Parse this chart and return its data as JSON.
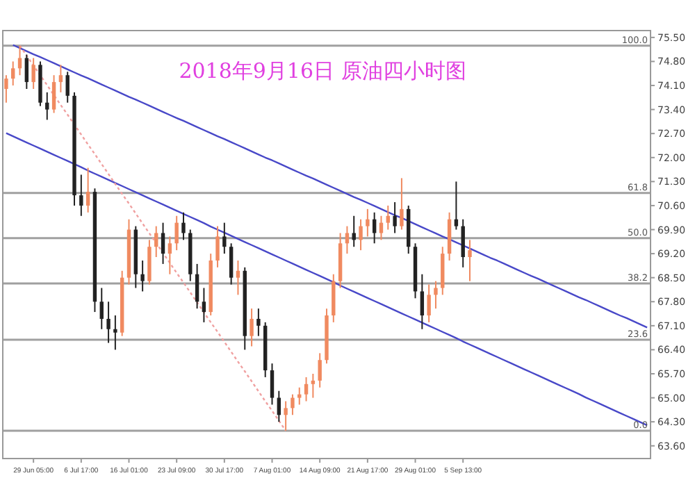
{
  "chart_data": {
    "type": "candlestick",
    "title": "2018年9月16日  原油四小时图",
    "categories": [
      null,
      null,
      null,
      null,
      "29 Jun 05:00",
      null,
      null,
      null,
      null,
      null,
      null,
      "6 Jul 17:00",
      null,
      null,
      null,
      null,
      null,
      null,
      "16 Jul 01:00",
      null,
      null,
      null,
      null,
      null,
      null,
      "23 Jul 09:00",
      null,
      null,
      null,
      null,
      null,
      null,
      "30 Jul 17:00",
      null,
      null,
      null,
      null,
      null,
      null,
      "7 Aug 01:00",
      null,
      null,
      null,
      null,
      null,
      null,
      "14 Aug 09:00",
      null,
      null,
      null,
      null,
      null,
      null,
      "21 Aug 17:00",
      null,
      null,
      null,
      null,
      null,
      null,
      "29 Aug 01:00",
      null,
      null,
      null,
      null,
      null,
      null,
      "5 Sep 13:00",
      null,
      null,
      null,
      null,
      null,
      null,
      null,
      null,
      null,
      null,
      null,
      null,
      null,
      null,
      null,
      null,
      null,
      null,
      null,
      null,
      null,
      null,
      null,
      null,
      null,
      null,
      null
    ],
    "ohlc": [
      [
        74.0,
        74.4,
        73.6,
        74.3
      ],
      [
        74.3,
        74.8,
        74.1,
        74.6
      ],
      [
        74.6,
        75.26,
        74.4,
        74.9
      ],
      [
        74.9,
        75.0,
        74.0,
        74.2
      ],
      [
        74.2,
        74.9,
        74.0,
        74.7
      ],
      [
        74.7,
        74.8,
        73.5,
        73.6
      ],
      [
        73.6,
        73.9,
        73.1,
        73.4
      ],
      [
        73.4,
        74.4,
        73.3,
        74.2
      ],
      [
        74.2,
        74.7,
        73.9,
        74.4
      ],
      [
        74.4,
        74.5,
        73.6,
        73.8
      ],
      [
        73.8,
        73.9,
        70.6,
        70.9
      ],
      [
        70.9,
        71.5,
        70.3,
        70.6
      ],
      [
        70.6,
        71.7,
        70.4,
        71.0
      ],
      [
        71.0,
        71.1,
        67.5,
        67.8
      ],
      [
        67.8,
        68.2,
        67.0,
        67.3
      ],
      [
        67.3,
        67.8,
        66.6,
        67.0
      ],
      [
        67.0,
        67.4,
        66.4,
        66.9
      ],
      [
        66.9,
        68.7,
        66.8,
        68.5
      ],
      [
        68.5,
        70.2,
        68.3,
        69.9
      ],
      [
        69.9,
        70.0,
        68.2,
        68.6
      ],
      [
        68.6,
        69.0,
        68.1,
        68.4
      ],
      [
        68.4,
        69.6,
        68.3,
        69.4
      ],
      [
        69.4,
        70.0,
        69.1,
        69.8
      ],
      [
        69.8,
        70.1,
        68.9,
        69.2
      ],
      [
        69.2,
        69.7,
        68.6,
        69.5
      ],
      [
        69.5,
        70.3,
        69.3,
        70.1
      ],
      [
        70.1,
        70.4,
        69.6,
        69.8
      ],
      [
        69.8,
        69.9,
        68.4,
        68.6
      ],
      [
        68.6,
        68.9,
        67.6,
        67.8
      ],
      [
        67.8,
        68.2,
        67.2,
        67.5
      ],
      [
        67.5,
        69.2,
        67.4,
        69.0
      ],
      [
        69.0,
        70.0,
        68.8,
        69.7
      ],
      [
        69.7,
        70.1,
        69.2,
        69.4
      ],
      [
        69.4,
        69.5,
        68.3,
        68.5
      ],
      [
        68.5,
        69.0,
        68.0,
        68.7
      ],
      [
        68.7,
        68.8,
        66.4,
        66.8
      ],
      [
        66.8,
        67.6,
        66.5,
        67.3
      ],
      [
        67.3,
        67.6,
        66.8,
        67.1
      ],
      [
        67.1,
        67.2,
        65.6,
        65.8
      ],
      [
        65.8,
        66.0,
        64.8,
        65.0
      ],
      [
        65.0,
        65.2,
        64.3,
        64.5
      ],
      [
        64.5,
        64.9,
        64.04,
        64.7
      ],
      [
        64.7,
        65.1,
        64.5,
        65.0
      ],
      [
        65.0,
        65.3,
        64.8,
        65.1
      ],
      [
        65.1,
        65.6,
        64.9,
        65.4
      ],
      [
        65.4,
        65.7,
        65.0,
        65.5
      ],
      [
        65.5,
        66.3,
        65.3,
        66.1
      ],
      [
        66.1,
        67.6,
        66.0,
        67.4
      ],
      [
        67.4,
        68.6,
        67.2,
        68.4
      ],
      [
        68.4,
        69.8,
        68.2,
        69.5
      ],
      [
        69.5,
        70.0,
        69.2,
        69.8
      ],
      [
        69.8,
        70.3,
        69.4,
        69.6
      ],
      [
        69.6,
        70.2,
        69.3,
        70.0
      ],
      [
        70.0,
        70.5,
        69.7,
        70.2
      ],
      [
        70.2,
        70.4,
        69.5,
        69.8
      ],
      [
        69.8,
        70.3,
        69.6,
        70.1
      ],
      [
        70.1,
        70.6,
        69.9,
        70.3
      ],
      [
        70.3,
        70.7,
        69.8,
        70.0
      ],
      [
        70.0,
        71.4,
        69.9,
        70.5
      ],
      [
        70.5,
        70.6,
        69.2,
        69.4
      ],
      [
        69.4,
        69.5,
        67.9,
        68.1
      ],
      [
        68.1,
        68.6,
        67.0,
        67.4
      ],
      [
        67.4,
        68.3,
        67.2,
        68.0
      ],
      [
        68.0,
        68.4,
        67.6,
        68.2
      ],
      [
        68.2,
        69.4,
        68.0,
        69.2
      ],
      [
        69.2,
        70.4,
        69.0,
        70.2
      ],
      [
        70.2,
        71.3,
        69.9,
        70.0
      ],
      [
        70.0,
        70.2,
        68.8,
        69.1
      ],
      [
        69.1,
        69.6,
        68.4,
        69.3
      ],
      null,
      null,
      null,
      null,
      null,
      null,
      null,
      null,
      null,
      null,
      null,
      null,
      null,
      null,
      null,
      null,
      null,
      null,
      null,
      null,
      null,
      null,
      null,
      null,
      null,
      null
    ],
    "colors": [
      "#f08a60",
      "#f08a60",
      "#f08a60",
      "#222222",
      "#f08a60",
      "#222222",
      "#222222",
      "#f08a60",
      "#f08a60",
      "#222222",
      "#222222",
      "#222222",
      "#f08a60",
      "#222222",
      "#222222",
      "#222222",
      "#222222",
      "#f08a60",
      "#f08a60",
      "#222222",
      "#222222",
      "#f08a60",
      "#f08a60",
      "#222222",
      "#f08a60",
      "#f08a60",
      "#222222",
      "#222222",
      "#222222",
      "#222222",
      "#f08a60",
      "#f08a60",
      "#222222",
      "#222222",
      "#f08a60",
      "#222222",
      "#f08a60",
      "#222222",
      "#222222",
      "#222222",
      "#222222",
      "#f08a60",
      "#f08a60",
      "#f08a60",
      "#f08a60",
      "#f08a60",
      "#f08a60",
      "#f08a60",
      "#f08a60",
      "#f08a60",
      "#f08a60",
      "#222222",
      "#f08a60",
      "#f08a60",
      "#222222",
      "#f08a60",
      "#f08a60",
      "#222222",
      "#f08a60",
      "#222222",
      "#222222",
      "#222222",
      "#f08a60",
      "#f08a60",
      "#f08a60",
      "#f08a60",
      "#222222",
      "#222222",
      "#f08a60",
      null,
      null,
      null,
      null,
      null,
      null,
      null,
      null,
      null,
      null,
      null,
      null,
      null,
      null,
      null,
      null,
      null,
      null,
      null,
      null,
      null,
      null,
      null,
      null,
      null,
      null
    ],
    "series": [
      {
        "type": "line",
        "color": "#4848c8",
        "line_style": "solid",
        "values": [
          null,
          75.28,
          75.19,
          75.1,
          75.01,
          74.93,
          74.84,
          74.75,
          74.66,
          74.57,
          74.48,
          74.39,
          74.31,
          74.22,
          74.13,
          74.04,
          73.95,
          73.86,
          73.77,
          73.69,
          73.6,
          73.51,
          73.42,
          73.33,
          73.24,
          73.15,
          73.07,
          72.98,
          72.89,
          72.8,
          72.71,
          72.62,
          72.54,
          72.45,
          72.36,
          72.27,
          72.18,
          72.09,
          72.0,
          71.92,
          71.83,
          71.74,
          71.65,
          71.56,
          71.47,
          71.39,
          71.3,
          71.21,
          71.12,
          71.03,
          70.94,
          70.85,
          70.77,
          70.68,
          70.59,
          70.5,
          70.41,
          70.32,
          70.24,
          70.15,
          70.06,
          69.97,
          69.88,
          69.79,
          69.7,
          69.62,
          69.53,
          69.44,
          69.35,
          69.26,
          69.17,
          69.08,
          69.0,
          68.91,
          68.82,
          68.73,
          68.64,
          68.55,
          68.47,
          68.38,
          68.29,
          68.2,
          68.11,
          68.02,
          67.93,
          67.85,
          67.76,
          67.67,
          67.58,
          67.49,
          67.4,
          67.32,
          67.23,
          67.14,
          67.05
        ]
      },
      {
        "type": "line",
        "color": "#4848c8",
        "line_style": "solid",
        "values": [
          72.71,
          72.62,
          72.53,
          72.44,
          72.35,
          72.26,
          72.17,
          72.08,
          71.99,
          71.9,
          71.81,
          71.72,
          71.62,
          71.53,
          71.44,
          71.35,
          71.26,
          71.17,
          71.08,
          70.99,
          70.9,
          70.81,
          70.72,
          70.63,
          70.54,
          70.45,
          70.36,
          70.27,
          70.18,
          70.09,
          69.99,
          69.9,
          69.81,
          69.72,
          69.63,
          69.54,
          69.45,
          69.36,
          69.27,
          69.18,
          69.09,
          69.0,
          68.91,
          68.82,
          68.73,
          68.64,
          68.55,
          68.46,
          68.37,
          68.27,
          68.18,
          68.09,
          68.0,
          67.91,
          67.82,
          67.73,
          67.64,
          67.55,
          67.46,
          67.37,
          67.28,
          67.19,
          67.1,
          67.01,
          66.92,
          66.83,
          66.74,
          66.64,
          66.55,
          66.46,
          66.37,
          66.28,
          66.19,
          66.1,
          66.01,
          65.92,
          65.83,
          65.74,
          65.65,
          65.56,
          65.47,
          65.38,
          65.29,
          65.2,
          65.11,
          65.01,
          64.92,
          64.83,
          64.74,
          64.65,
          64.56,
          64.47,
          64.38,
          64.29,
          64.2
        ]
      },
      {
        "type": "line",
        "color": "#f0a0a0",
        "line_style": "dotted",
        "values": [
          null,
          null,
          75.26,
          74.97,
          74.68,
          74.4,
          74.11,
          73.82,
          73.53,
          73.25,
          72.96,
          72.67,
          72.38,
          72.1,
          71.81,
          71.52,
          71.23,
          70.94,
          70.66,
          70.37,
          70.08,
          69.79,
          69.51,
          69.22,
          68.93,
          68.64,
          68.36,
          68.07,
          67.78,
          67.49,
          67.2,
          66.92,
          66.63,
          66.34,
          66.05,
          65.77,
          65.48,
          65.19,
          64.9,
          64.62,
          64.33,
          64.04,
          null,
          null,
          null,
          null,
          null,
          null,
          null,
          null,
          null,
          null,
          null,
          null,
          null,
          null,
          null,
          null,
          null,
          null,
          null,
          null,
          null,
          null,
          null,
          null,
          null,
          null,
          null,
          null,
          null,
          null,
          null,
          null,
          null,
          null,
          null,
          null,
          null,
          null,
          null,
          null,
          null,
          null,
          null,
          null,
          null,
          null,
          null,
          null,
          null,
          null,
          null,
          null,
          null
        ]
      }
    ],
    "ref_lines": [
      {
        "axis": "y",
        "value": 75.26,
        "color": "#a0a0a0"
      },
      {
        "axis": "y",
        "value": 70.97,
        "color": "#a0a0a0"
      },
      {
        "axis": "y",
        "value": 69.65,
        "color": "#a0a0a0"
      },
      {
        "axis": "y",
        "value": 68.33,
        "color": "#a0a0a0"
      },
      {
        "axis": "y",
        "value": 66.69,
        "color": "#a0a0a0"
      },
      {
        "axis": "y",
        "value": 64.04,
        "color": "#a0a0a0"
      }
    ],
    "annotations": [
      {
        "text": "100.0",
        "y": 75.26
      },
      {
        "text": "61.8",
        "y": 70.97
      },
      {
        "text": "50.0",
        "y": 69.65
      },
      {
        "text": "38.2",
        "y": 68.33
      },
      {
        "text": "23.6",
        "y": 66.69
      },
      {
        "text": "0.0",
        "y": 64.04
      }
    ],
    "ylim": [
      63.23,
      75.7
    ],
    "yticks": [
      {
        "value": 75.5,
        "label": "75.50"
      },
      {
        "value": 74.8,
        "label": "74.80"
      },
      {
        "value": 74.1,
        "label": "74.10"
      },
      {
        "value": 73.4,
        "label": "73.40"
      },
      {
        "value": 72.7,
        "label": "72.70"
      },
      {
        "value": 72.0,
        "label": "72.00"
      },
      {
        "value": 71.3,
        "label": "71.30"
      },
      {
        "value": 70.6,
        "label": "70.60"
      },
      {
        "value": 69.9,
        "label": "69.90"
      },
      {
        "value": 69.2,
        "label": "69.20"
      },
      {
        "value": 68.5,
        "label": "68.50"
      },
      {
        "value": 67.8,
        "label": "67.80"
      },
      {
        "value": 67.1,
        "label": "67.10"
      },
      {
        "value": 66.4,
        "label": "66.40"
      },
      {
        "value": 65.7,
        "label": "65.70"
      },
      {
        "value": 65.0,
        "label": "65.00"
      },
      {
        "value": 64.3,
        "label": "64.30"
      },
      {
        "value": 63.6,
        "label": "63.60"
      }
    ],
    "grid": false
  }
}
